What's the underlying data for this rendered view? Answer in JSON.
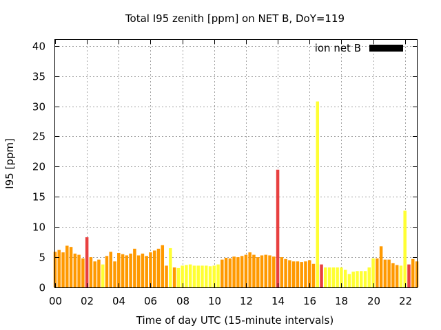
{
  "chart_data": {
    "type": "bar",
    "title": "Total I95 zenith [ppm] on NET B, DoY=119",
    "xlabel": "Time of day UTC (15-minute intervals)",
    "ylabel": "I95 [ppm]",
    "ylim": [
      0,
      41
    ],
    "xlim": [
      0,
      22.75
    ],
    "yticks": [
      0,
      5,
      10,
      15,
      20,
      25,
      30,
      35,
      40
    ],
    "xticks": [
      "00",
      "02",
      "04",
      "06",
      "08",
      "10",
      "12",
      "14",
      "16",
      "18",
      "20",
      "22"
    ],
    "grid": true,
    "legend": {
      "label": "ion net B",
      "position": "top-right",
      "color": "#000000"
    },
    "interval_hours": 0.25,
    "colors": {
      "yellow": "#ffff33",
      "orange": "#ff9900",
      "red": "#e84040"
    },
    "levels": [
      "orange",
      "orange",
      "orange",
      "orange",
      "orange",
      "orange",
      "orange",
      "orange",
      "red",
      "orange",
      "orange",
      "orange",
      "yellow",
      "orange",
      "orange",
      "orange",
      "orange",
      "orange",
      "orange",
      "orange",
      "orange",
      "orange",
      "orange",
      "orange",
      "orange",
      "orange",
      "orange",
      "orange",
      "orange",
      "yellow",
      "orange",
      "yellow",
      "yellow",
      "yellow",
      "yellow",
      "yellow",
      "yellow",
      "yellow",
      "yellow",
      "yellow",
      "yellow",
      "yellow",
      "orange",
      "orange",
      "orange",
      "orange",
      "orange",
      "orange",
      "orange",
      "orange",
      "orange",
      "orange",
      "orange",
      "orange",
      "orange",
      "orange",
      "red",
      "orange",
      "orange",
      "orange",
      "orange",
      "orange",
      "orange",
      "orange",
      "orange",
      "orange",
      "yellow",
      "red",
      "yellow",
      "yellow",
      "yellow",
      "yellow",
      "yellow",
      "yellow",
      "yellow",
      "yellow",
      "yellow",
      "yellow",
      "yellow",
      "yellow",
      "yellow",
      "orange",
      "orange",
      "orange",
      "orange",
      "orange",
      "orange",
      "yellow",
      "yellow",
      "red",
      "orange",
      "orange"
    ],
    "values": [
      5.9,
      6.2,
      5.8,
      6.9,
      6.7,
      5.6,
      5.4,
      4.8,
      8.3,
      5.0,
      4.3,
      4.6,
      3.8,
      5.2,
      5.9,
      4.3,
      5.7,
      5.5,
      5.3,
      5.6,
      6.4,
      5.3,
      5.6,
      5.2,
      5.8,
      6.1,
      6.4,
      7.0,
      3.6,
      6.5,
      3.3,
      3.2,
      3.6,
      3.7,
      3.8,
      3.6,
      3.6,
      3.6,
      3.6,
      3.5,
      3.6,
      3.8,
      4.6,
      4.9,
      4.8,
      5.1,
      5.0,
      5.2,
      5.4,
      5.8,
      5.4,
      5.0,
      5.3,
      5.4,
      5.3,
      5.1,
      19.5,
      5.0,
      4.7,
      4.5,
      4.3,
      4.3,
      4.2,
      4.3,
      4.5,
      3.9,
      30.8,
      3.8,
      3.3,
      3.3,
      3.3,
      3.3,
      3.3,
      2.9,
      2.2,
      2.6,
      2.7,
      2.7,
      2.7,
      3.3,
      4.8,
      4.8,
      6.8,
      4.6,
      4.6,
      4.0,
      3.7,
      3.6,
      12.7,
      3.8,
      4.7,
      4.3
    ]
  }
}
